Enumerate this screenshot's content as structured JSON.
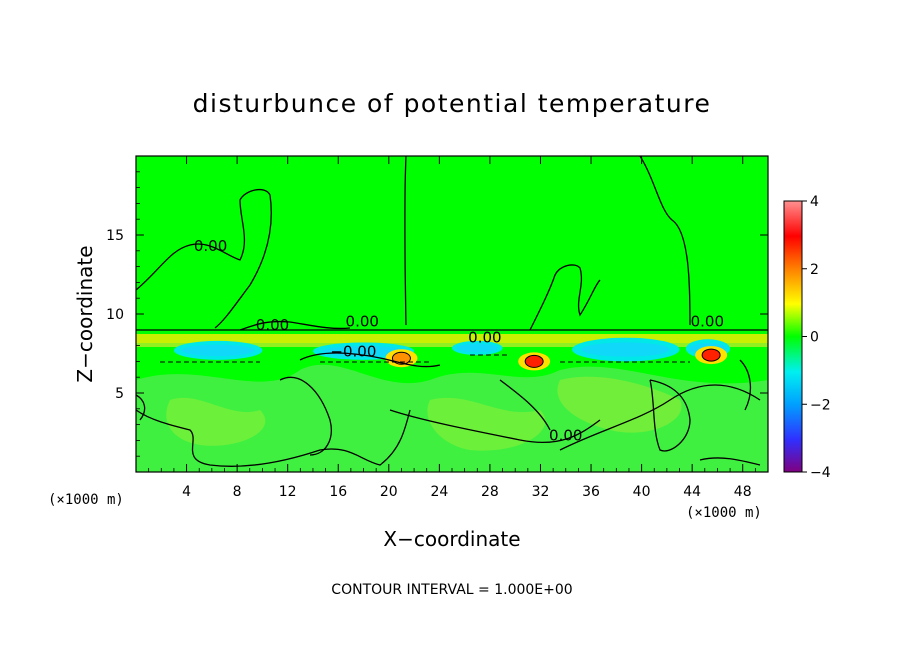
{
  "chart_data": {
    "type": "heatmap",
    "title": "disturbunce of potential temperature",
    "xlabel": "X−coordinate",
    "ylabel": "Z−coordinate",
    "x_unit": "(×1000 m)",
    "y_unit": "(×1000 m)",
    "xlim": [
      0,
      50
    ],
    "ylim": [
      0,
      20
    ],
    "x_ticks": [
      4,
      8,
      12,
      16,
      20,
      24,
      28,
      32,
      36,
      40,
      44,
      48
    ],
    "y_ticks": [
      5,
      10,
      15
    ],
    "colorbar": {
      "range": [
        -4,
        4
      ],
      "ticks": [
        4,
        2,
        0,
        -2,
        -4
      ],
      "tick_labels": [
        "4",
        "2",
        "0",
        "−2",
        "−4"
      ],
      "colors": [
        "#800080",
        "#3030ff",
        "#00a0ff",
        "#00f0f0",
        "#00ff00",
        "#ffff00",
        "#ff8000",
        "#ff0000",
        "#ff8080"
      ]
    },
    "background_value": 0,
    "cold_anomalies": [
      {
        "x": [
          3,
          10
        ],
        "z": [
          7.1,
          8.3
        ],
        "value": -1
      },
      {
        "x": [
          14,
          22
        ],
        "z": [
          7.1,
          8.2
        ],
        "value": -1
      },
      {
        "x": [
          25,
          29
        ],
        "z": [
          7.4,
          8.3
        ],
        "value": -1
      },
      {
        "x": [
          34.5,
          43
        ],
        "z": [
          7.0,
          8.5
        ],
        "value": -1
      },
      {
        "x": [
          43.5,
          47
        ],
        "z": [
          7.2,
          8.4
        ],
        "value": -1
      }
    ],
    "warm_anomalies": [
      {
        "x": 21,
        "z": 7.2,
        "value": 2
      },
      {
        "x": 31.5,
        "z": 7.0,
        "value": 3
      },
      {
        "x": 45.5,
        "z": 7.4,
        "value": 3
      }
    ],
    "contour_labels": [
      {
        "x": 5.9,
        "z": 14.0,
        "text": "0.00"
      },
      {
        "x": 10.8,
        "z": 9.0,
        "text": "0.00"
      },
      {
        "x": 17.9,
        "z": 9.2,
        "text": "0.00"
      },
      {
        "x": 17.2,
        "z": 7.3,
        "text": "−0.00"
      },
      {
        "x": 27.6,
        "z": 8.2,
        "text": "0.00"
      },
      {
        "x": 34.0,
        "z": 2.0,
        "text": "0.00"
      },
      {
        "x": 45.2,
        "z": 9.2,
        "text": "0.00"
      }
    ],
    "contour_interval_text": "CONTOUR INTERVAL = 1.000E+00"
  }
}
